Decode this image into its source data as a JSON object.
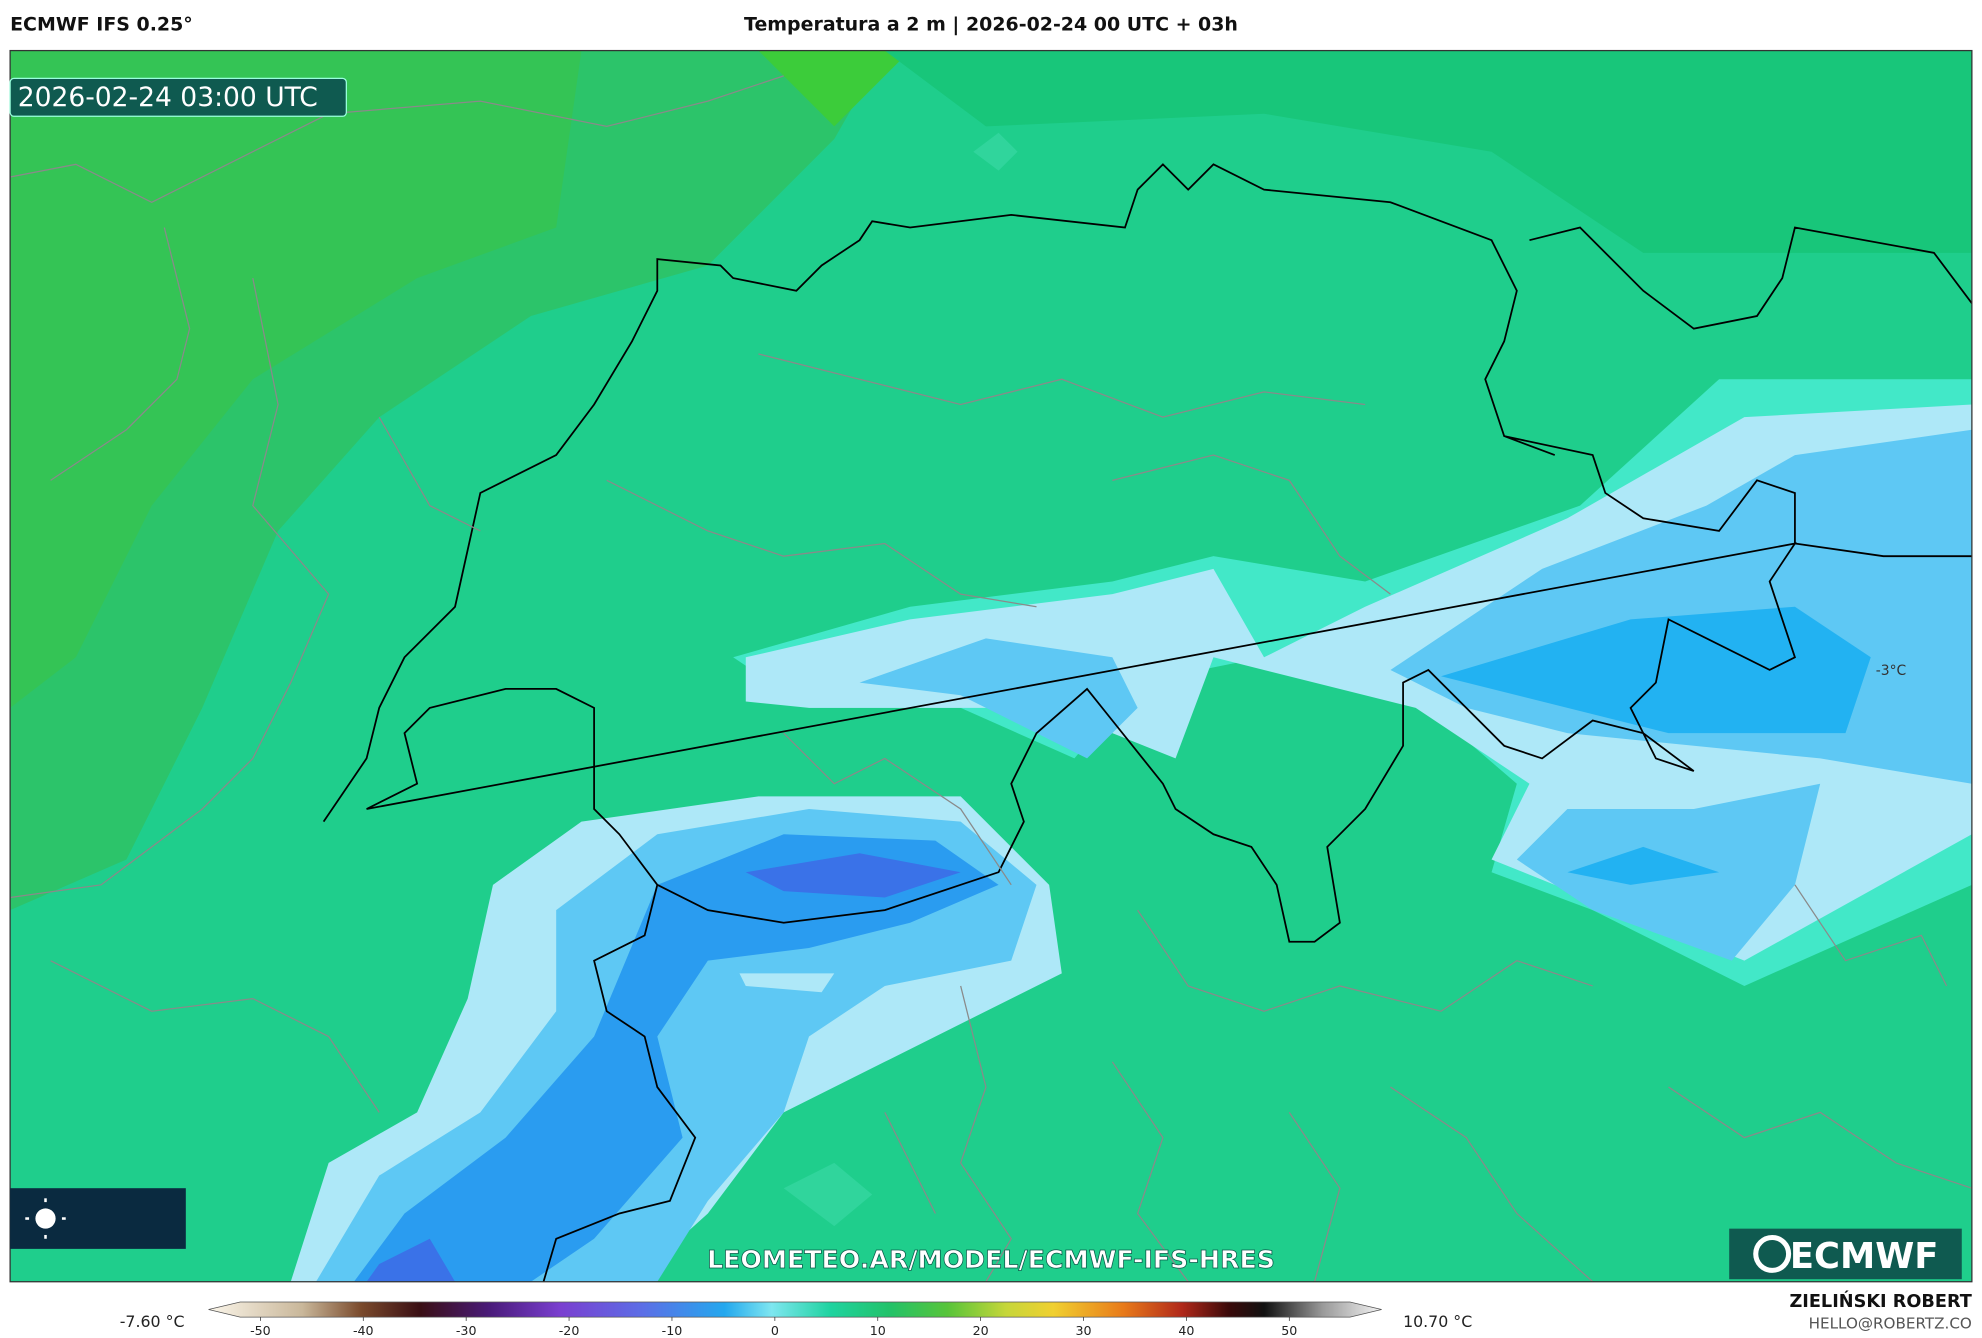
{
  "header": {
    "left": "ECMWF IFS 0.25°",
    "title": "Temperatura a 2 m | 2026-02-24 00 UTC + 03h"
  },
  "map": {
    "timestamp": "2026-02-24 03:00 UTC",
    "point_label": "-3°C",
    "watermark": "LEOMETEO.AR/MODEL/ECMWF-IFS-HRES",
    "logo": "ECMWF"
  },
  "colorbar": {
    "min_label": "-7.60 °C",
    "max_label": "10.70 °C",
    "ticks": [
      -50,
      -40,
      -30,
      -20,
      -10,
      0,
      10,
      20,
      30,
      40,
      50
    ]
  },
  "footer": {
    "author": "ZIELIŃSKI ROBERT",
    "email": "HELLO@ROBERTZ.CO"
  }
}
